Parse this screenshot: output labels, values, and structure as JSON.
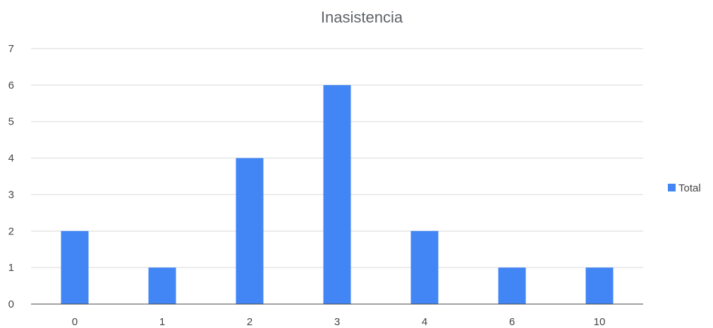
{
  "chart_data": {
    "type": "bar",
    "title": "Inasistencia",
    "xlabel": "",
    "ylabel": "",
    "categories": [
      "0",
      "1",
      "2",
      "3",
      "4",
      "6",
      "10"
    ],
    "series": [
      {
        "name": "Total",
        "values": [
          2,
          1,
          4,
          6,
          2,
          1,
          1
        ],
        "color": "#4285f4"
      }
    ],
    "ylim": [
      0,
      7
    ],
    "yticks": [
      "0",
      "1",
      "2",
      "3",
      "4",
      "5",
      "6",
      "7"
    ],
    "grid": true,
    "legend_position": "right",
    "colors": {
      "bar": "#4285f4",
      "grid": "#d9d9d9",
      "text": "#444444",
      "title": "#5f6368"
    }
  }
}
